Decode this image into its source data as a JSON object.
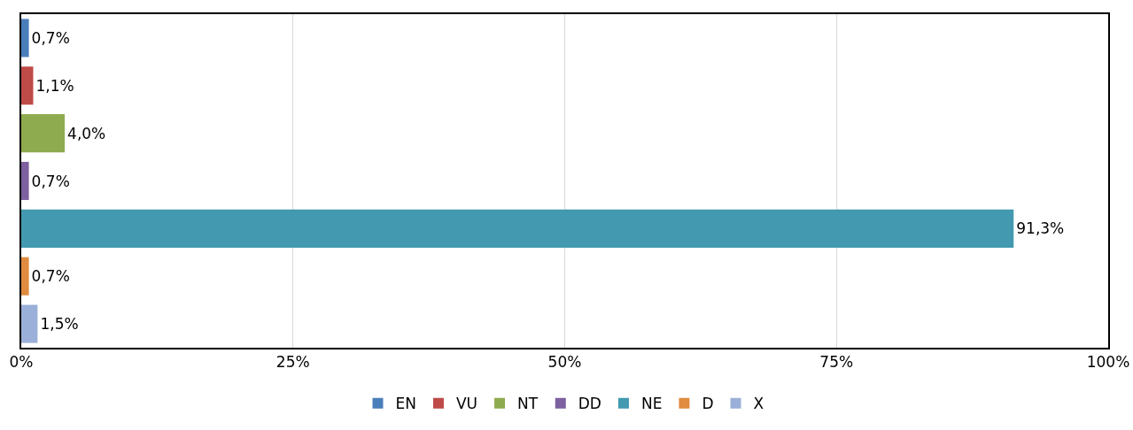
{
  "chart_data": {
    "type": "bar",
    "orientation": "horizontal",
    "categories": [
      null,
      null,
      null,
      null,
      null,
      null,
      null
    ],
    "series": [
      {
        "name": "EN",
        "color": "#4a7ebb",
        "values": [
          0.7,
          null,
          null,
          null,
          null,
          null,
          null
        ],
        "value_labels": [
          "0,7%",
          null,
          null,
          null,
          null,
          null,
          null
        ]
      },
      {
        "name": "VU",
        "color": "#be4b48",
        "values": [
          null,
          1.1,
          null,
          null,
          null,
          null,
          null
        ],
        "value_labels": [
          null,
          "1,1%",
          null,
          null,
          null,
          null,
          null
        ]
      },
      {
        "name": "NT",
        "color": "#8fab4f",
        "values": [
          null,
          null,
          4.0,
          null,
          null,
          null,
          null
        ],
        "value_labels": [
          null,
          null,
          "4,0%",
          null,
          null,
          null,
          null
        ]
      },
      {
        "name": "DD",
        "color": "#7d60a0",
        "values": [
          null,
          null,
          null,
          0.7,
          null,
          null,
          null
        ],
        "value_labels": [
          null,
          null,
          null,
          "0,7%",
          null,
          null,
          null
        ]
      },
      {
        "name": "NE",
        "color": "#4299b0",
        "values": [
          null,
          null,
          null,
          null,
          91.3,
          null,
          null
        ],
        "value_labels": [
          null,
          null,
          null,
          null,
          "91,3%",
          null,
          null
        ]
      },
      {
        "name": "D",
        "color": "#e08b3f",
        "values": [
          null,
          null,
          null,
          null,
          null,
          0.7,
          null
        ],
        "value_labels": [
          null,
          null,
          null,
          null,
          null,
          "0,7%",
          null
        ]
      },
      {
        "name": "X",
        "color": "#9bb0d8",
        "values": [
          null,
          null,
          null,
          null,
          null,
          null,
          1.5
        ],
        "value_labels": [
          null,
          null,
          null,
          null,
          null,
          null,
          "1,5%"
        ]
      }
    ],
    "xlim": [
      0,
      100
    ],
    "xticks": [
      {
        "value": 0,
        "label": "0%"
      },
      {
        "value": 25,
        "label": "25%"
      },
      {
        "value": 50,
        "label": "50%"
      },
      {
        "value": 75,
        "label": "75%"
      },
      {
        "value": 100,
        "label": "100%"
      }
    ],
    "grid": "x",
    "legend": "bottom",
    "tick_labels": "x"
  }
}
